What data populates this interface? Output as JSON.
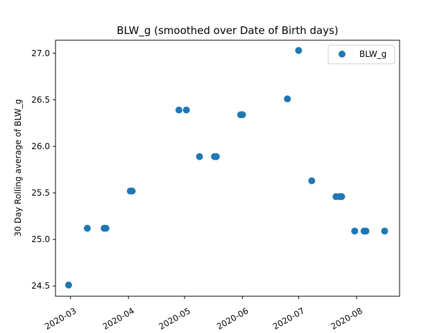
{
  "chart_data": {
    "type": "scatter",
    "title": "BLW_g (smoothed over Date of Birth days)",
    "xlabel": "",
    "ylabel": "30 Day Rolling average of BLW_g",
    "x_type": "date",
    "xlim": [
      "2020-02-22",
      "2020-08-24"
    ],
    "ylim": [
      24.39,
      27.14
    ],
    "xticks": [
      "2020-03-01",
      "2020-04-01",
      "2020-05-01",
      "2020-06-01",
      "2020-07-01",
      "2020-08-01"
    ],
    "xtick_labels": [
      "2020-03",
      "2020-04",
      "2020-05",
      "2020-06",
      "2020-07",
      "2020-08"
    ],
    "yticks": [
      24.5,
      25.0,
      25.5,
      26.0,
      26.5,
      27.0
    ],
    "ytick_labels": [
      "24.5",
      "25.0",
      "25.5",
      "26.0",
      "26.5",
      "27.0"
    ],
    "legend_position": "top-right",
    "grid": false,
    "marker_color": "#1f77b4",
    "series": [
      {
        "name": "BLW_g",
        "x": [
          "2020-02-29",
          "2020-03-10",
          "2020-03-19",
          "2020-03-20",
          "2020-04-02",
          "2020-04-03",
          "2020-04-28",
          "2020-05-02",
          "2020-05-09",
          "2020-05-17",
          "2020-05-18",
          "2020-05-31",
          "2020-06-01",
          "2020-06-25",
          "2020-07-01",
          "2020-07-08",
          "2020-07-21",
          "2020-07-23",
          "2020-07-24",
          "2020-07-31",
          "2020-08-05",
          "2020-08-06",
          "2020-08-16"
        ],
        "y": [
          24.51,
          25.12,
          25.12,
          25.12,
          25.52,
          25.52,
          26.39,
          26.39,
          25.89,
          25.89,
          25.89,
          26.34,
          26.34,
          26.51,
          27.03,
          25.63,
          25.46,
          25.46,
          25.46,
          25.09,
          25.09,
          25.09,
          25.09
        ]
      }
    ]
  }
}
